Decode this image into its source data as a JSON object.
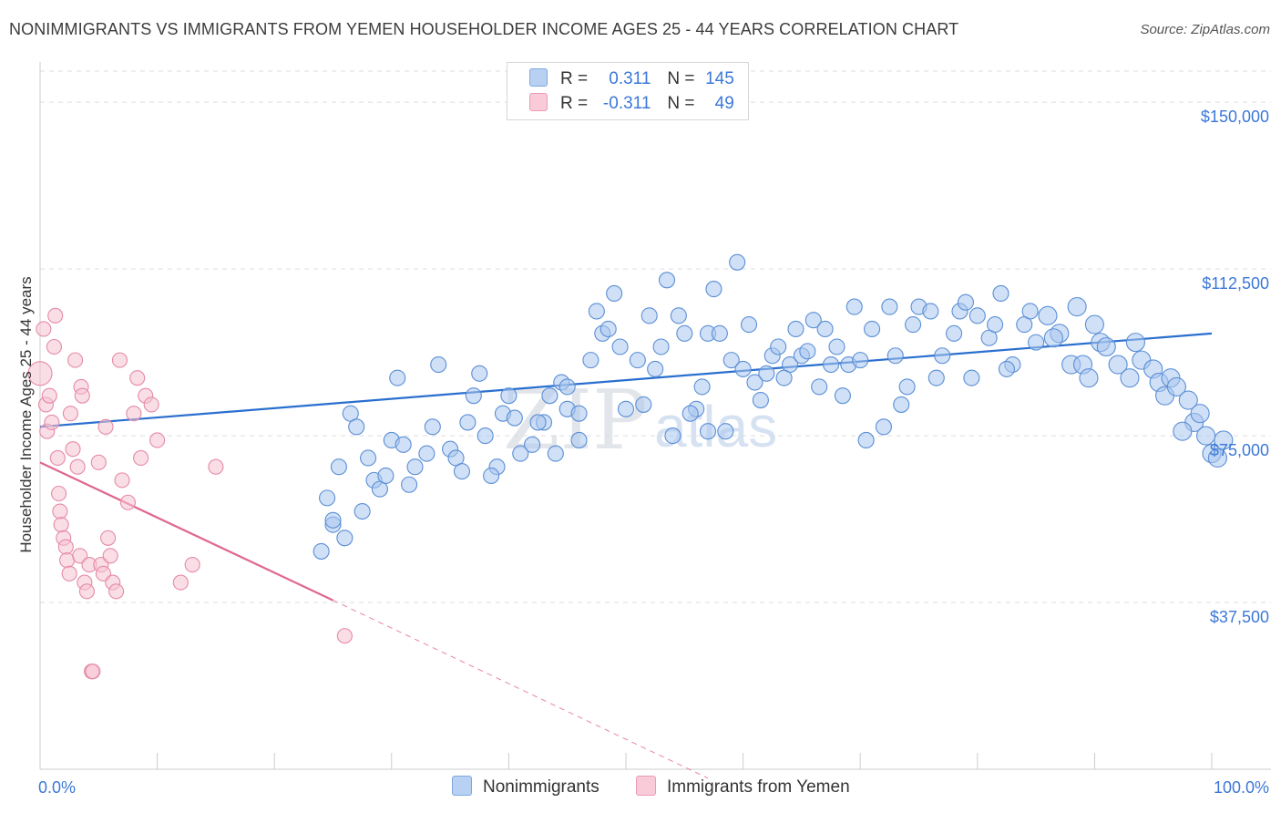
{
  "title": "NONIMMIGRANTS VS IMMIGRANTS FROM YEMEN HOUSEHOLDER INCOME AGES 25 - 44 YEARS CORRELATION CHART",
  "source": "Source: ZipAtlas.com",
  "watermark": {
    "zip": "ZIP",
    "atlas": "atlas"
  },
  "legend": {
    "rows": [
      {
        "r_label": "R =",
        "r_value": "0.311",
        "n_label": "N =",
        "n_value": "145"
      },
      {
        "r_label": "R =",
        "r_value": "-0.311",
        "n_label": "N =",
        "n_value": "49"
      }
    ]
  },
  "bottom_legend": {
    "series1": "Nonimmigrants",
    "series2": "Immigrants from Yemen"
  },
  "colors": {
    "blue_fill": "#a9c7ee",
    "blue_stroke": "#5b8fd6",
    "blue_line": "#2a6fcf",
    "pink_fill": "#f6c2d2",
    "pink_stroke": "#e58aa8",
    "pink_line": "#e0688f",
    "grid": "#dddddd",
    "accent_text": "#3c78d8"
  },
  "chart_data": {
    "type": "scatter",
    "title": "NONIMMIGRANTS VS IMMIGRANTS FROM YEMEN HOUSEHOLDER INCOME AGES 25 - 44 YEARS CORRELATION CHART",
    "xlabel": "",
    "ylabel": "Householder Income Ages 25 - 44 years",
    "xlim": [
      0,
      100
    ],
    "ylim": [
      0,
      157000
    ],
    "x_tick_labels": [
      "0.0%",
      "100.0%"
    ],
    "y_ticks": [
      37500,
      75000,
      112500,
      150000
    ],
    "y_tick_labels": [
      "$37,500",
      "$75,000",
      "$112,500",
      "$150,000"
    ],
    "series": [
      {
        "name": "Nonimmigrants",
        "r": 0.311,
        "n": 145,
        "trend": {
          "x": [
            0,
            100
          ],
          "y": [
            77000,
            98000
          ]
        },
        "points": [
          [
            24,
            49
          ],
          [
            25,
            55
          ],
          [
            25,
            56
          ],
          [
            24.5,
            61
          ],
          [
            25.5,
            68
          ],
          [
            26.5,
            80
          ],
          [
            27,
            77
          ],
          [
            28,
            70
          ],
          [
            28.5,
            65
          ],
          [
            29,
            63
          ],
          [
            30,
            74
          ],
          [
            30.5,
            88
          ],
          [
            31,
            73
          ],
          [
            31.5,
            64
          ],
          [
            33,
            71
          ],
          [
            33.5,
            77
          ],
          [
            34,
            91
          ],
          [
            35,
            72
          ],
          [
            35.5,
            70
          ],
          [
            36,
            67
          ],
          [
            36.5,
            78
          ],
          [
            37,
            84
          ],
          [
            37.5,
            89
          ],
          [
            38,
            75
          ],
          [
            39,
            68
          ],
          [
            39.5,
            80
          ],
          [
            40,
            84
          ],
          [
            40.5,
            79
          ],
          [
            41,
            71
          ],
          [
            42,
            73
          ],
          [
            43,
            78
          ],
          [
            44,
            71
          ],
          [
            44.5,
            87
          ],
          [
            45,
            86
          ],
          [
            45,
            81
          ],
          [
            46,
            80
          ],
          [
            47,
            92
          ],
          [
            47.5,
            103
          ],
          [
            48,
            98
          ],
          [
            48.5,
            99
          ],
          [
            49,
            107
          ],
          [
            50,
            81
          ],
          [
            51,
            92
          ],
          [
            52,
            102
          ],
          [
            53,
            95
          ],
          [
            53.5,
            110
          ],
          [
            54,
            75
          ],
          [
            54.5,
            102
          ],
          [
            55,
            98
          ],
          [
            56,
            81
          ],
          [
            56.5,
            86
          ],
          [
            57,
            98
          ],
          [
            57.5,
            108
          ],
          [
            58,
            98
          ],
          [
            59,
            92
          ],
          [
            59.5,
            114
          ],
          [
            60,
            90
          ],
          [
            60.5,
            100
          ],
          [
            61,
            87
          ],
          [
            62,
            89
          ],
          [
            62.5,
            93
          ],
          [
            63,
            95
          ],
          [
            64,
            91
          ],
          [
            64.5,
            99
          ],
          [
            65,
            93
          ],
          [
            66,
            101
          ],
          [
            67,
            99
          ],
          [
            67.5,
            91
          ],
          [
            68,
            95
          ],
          [
            69,
            91
          ],
          [
            69.5,
            104
          ],
          [
            70,
            92
          ],
          [
            71,
            99
          ],
          [
            72,
            77
          ],
          [
            72.5,
            104
          ],
          [
            73,
            93
          ],
          [
            74,
            86
          ],
          [
            74.5,
            100
          ],
          [
            75,
            104
          ],
          [
            76,
            103
          ],
          [
            77,
            93
          ],
          [
            78,
            98
          ],
          [
            78.5,
            103
          ],
          [
            79,
            105
          ],
          [
            80,
            102
          ],
          [
            81,
            97
          ],
          [
            81.5,
            100
          ],
          [
            82,
            107
          ],
          [
            83,
            91
          ],
          [
            84,
            100
          ],
          [
            84.5,
            103
          ],
          [
            85,
            96
          ],
          [
            86,
            102
          ],
          [
            87,
            98
          ],
          [
            88,
            91
          ],
          [
            88.5,
            104
          ],
          [
            89,
            91
          ],
          [
            90,
            100
          ],
          [
            90.5,
            96
          ],
          [
            91,
            95
          ],
          [
            92,
            91
          ],
          [
            93,
            88
          ],
          [
            93.5,
            96
          ],
          [
            94,
            92
          ],
          [
            95,
            90
          ],
          [
            95.5,
            87
          ],
          [
            96,
            84
          ],
          [
            96.5,
            88
          ],
          [
            97,
            86
          ],
          [
            98,
            83
          ],
          [
            98.5,
            78
          ],
          [
            99,
            80
          ],
          [
            99.5,
            75
          ],
          [
            100,
            71
          ],
          [
            100.5,
            70
          ],
          [
            101,
            74
          ],
          [
            97.5,
            76
          ],
          [
            89.5,
            88
          ],
          [
            86.5,
            97
          ],
          [
            82.5,
            90
          ],
          [
            79.5,
            88
          ],
          [
            76.5,
            88
          ],
          [
            73.5,
            82
          ],
          [
            70.5,
            74
          ],
          [
            68.5,
            84
          ],
          [
            66.5,
            86
          ],
          [
            65.5,
            94
          ],
          [
            63.5,
            88
          ],
          [
            61.5,
            83
          ],
          [
            58.5,
            76
          ],
          [
            57,
            76
          ],
          [
            55.5,
            80
          ],
          [
            52.5,
            90
          ],
          [
            51.5,
            82
          ],
          [
            49.5,
            95
          ],
          [
            46,
            74
          ],
          [
            43.5,
            84
          ],
          [
            42.5,
            78
          ],
          [
            38.5,
            66
          ],
          [
            32,
            68
          ],
          [
            29.5,
            66
          ],
          [
            27.5,
            58
          ],
          [
            26,
            52
          ]
        ]
      },
      {
        "name": "Immigrants from Yemen",
        "r": -0.311,
        "n": 49,
        "trend": {
          "x": [
            0,
            25
          ],
          "y": [
            69000,
            38000
          ]
        },
        "trend_dashed": {
          "x": [
            25,
            57
          ],
          "y": [
            38000,
            -2000
          ]
        },
        "points": [
          [
            0,
            89
          ],
          [
            0.3,
            99
          ],
          [
            0.5,
            82
          ],
          [
            0.6,
            76
          ],
          [
            0.8,
            84
          ],
          [
            1,
            78
          ],
          [
            1.2,
            95
          ],
          [
            1.3,
            102
          ],
          [
            1.5,
            70
          ],
          [
            1.6,
            62
          ],
          [
            1.7,
            58
          ],
          [
            1.8,
            55
          ],
          [
            2,
            52
          ],
          [
            2.2,
            50
          ],
          [
            2.3,
            47
          ],
          [
            2.5,
            44
          ],
          [
            2.6,
            80
          ],
          [
            2.8,
            72
          ],
          [
            3,
            92
          ],
          [
            3.2,
            68
          ],
          [
            3.4,
            48
          ],
          [
            3.5,
            86
          ],
          [
            3.6,
            84
          ],
          [
            3.8,
            42
          ],
          [
            4,
            40
          ],
          [
            4.2,
            46
          ],
          [
            4.4,
            22
          ],
          [
            4.5,
            22
          ],
          [
            5,
            69
          ],
          [
            5.2,
            46
          ],
          [
            5.4,
            44
          ],
          [
            5.6,
            77
          ],
          [
            5.8,
            52
          ],
          [
            6,
            48
          ],
          [
            6.2,
            42
          ],
          [
            6.5,
            40
          ],
          [
            6.8,
            92
          ],
          [
            7,
            65
          ],
          [
            7.5,
            60
          ],
          [
            8,
            80
          ],
          [
            8.3,
            88
          ],
          [
            8.6,
            70
          ],
          [
            9,
            84
          ],
          [
            9.5,
            82
          ],
          [
            10,
            74
          ],
          [
            12,
            42
          ],
          [
            13,
            46
          ],
          [
            15,
            68
          ],
          [
            26,
            30
          ]
        ]
      }
    ]
  }
}
